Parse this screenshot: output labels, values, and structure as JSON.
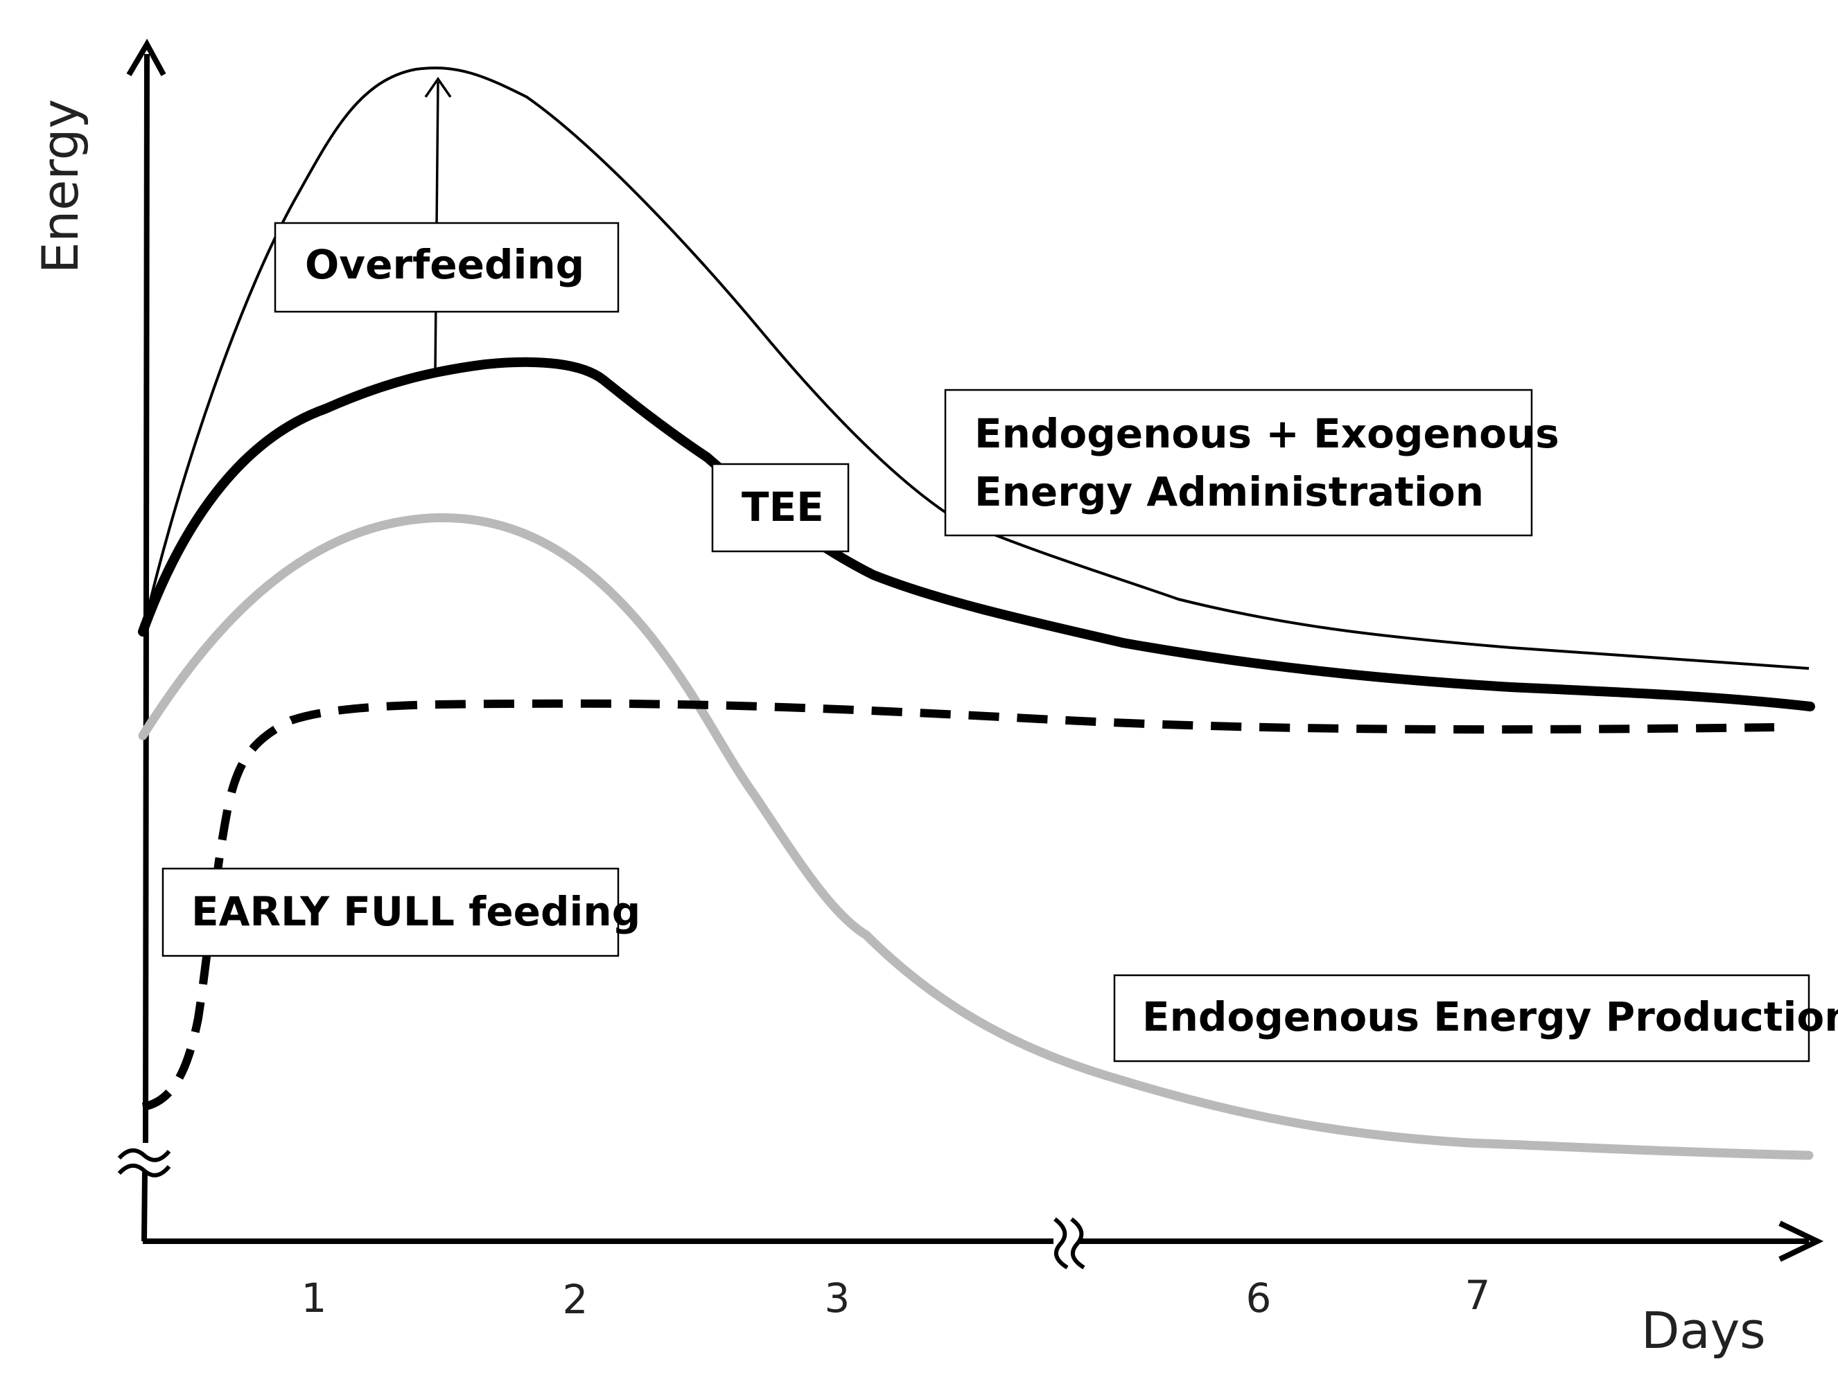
{
  "axes": {
    "y_title": "Energy",
    "x_title": "Days",
    "x_ticks": [
      "1",
      "2",
      "3",
      "6",
      "7"
    ]
  },
  "labels": {
    "overfeeding": "Overfeeding",
    "combined_line1": "Endogenous + Exogenous",
    "combined_line2": "Energy Administration",
    "tee": "TEE",
    "early_full_feeding": "EARLY FULL feeding",
    "endogenous_production": "Endogenous Energy Production"
  },
  "colors": {
    "ink": "#000000",
    "endogenous_curve": "#b9b9b9"
  }
}
